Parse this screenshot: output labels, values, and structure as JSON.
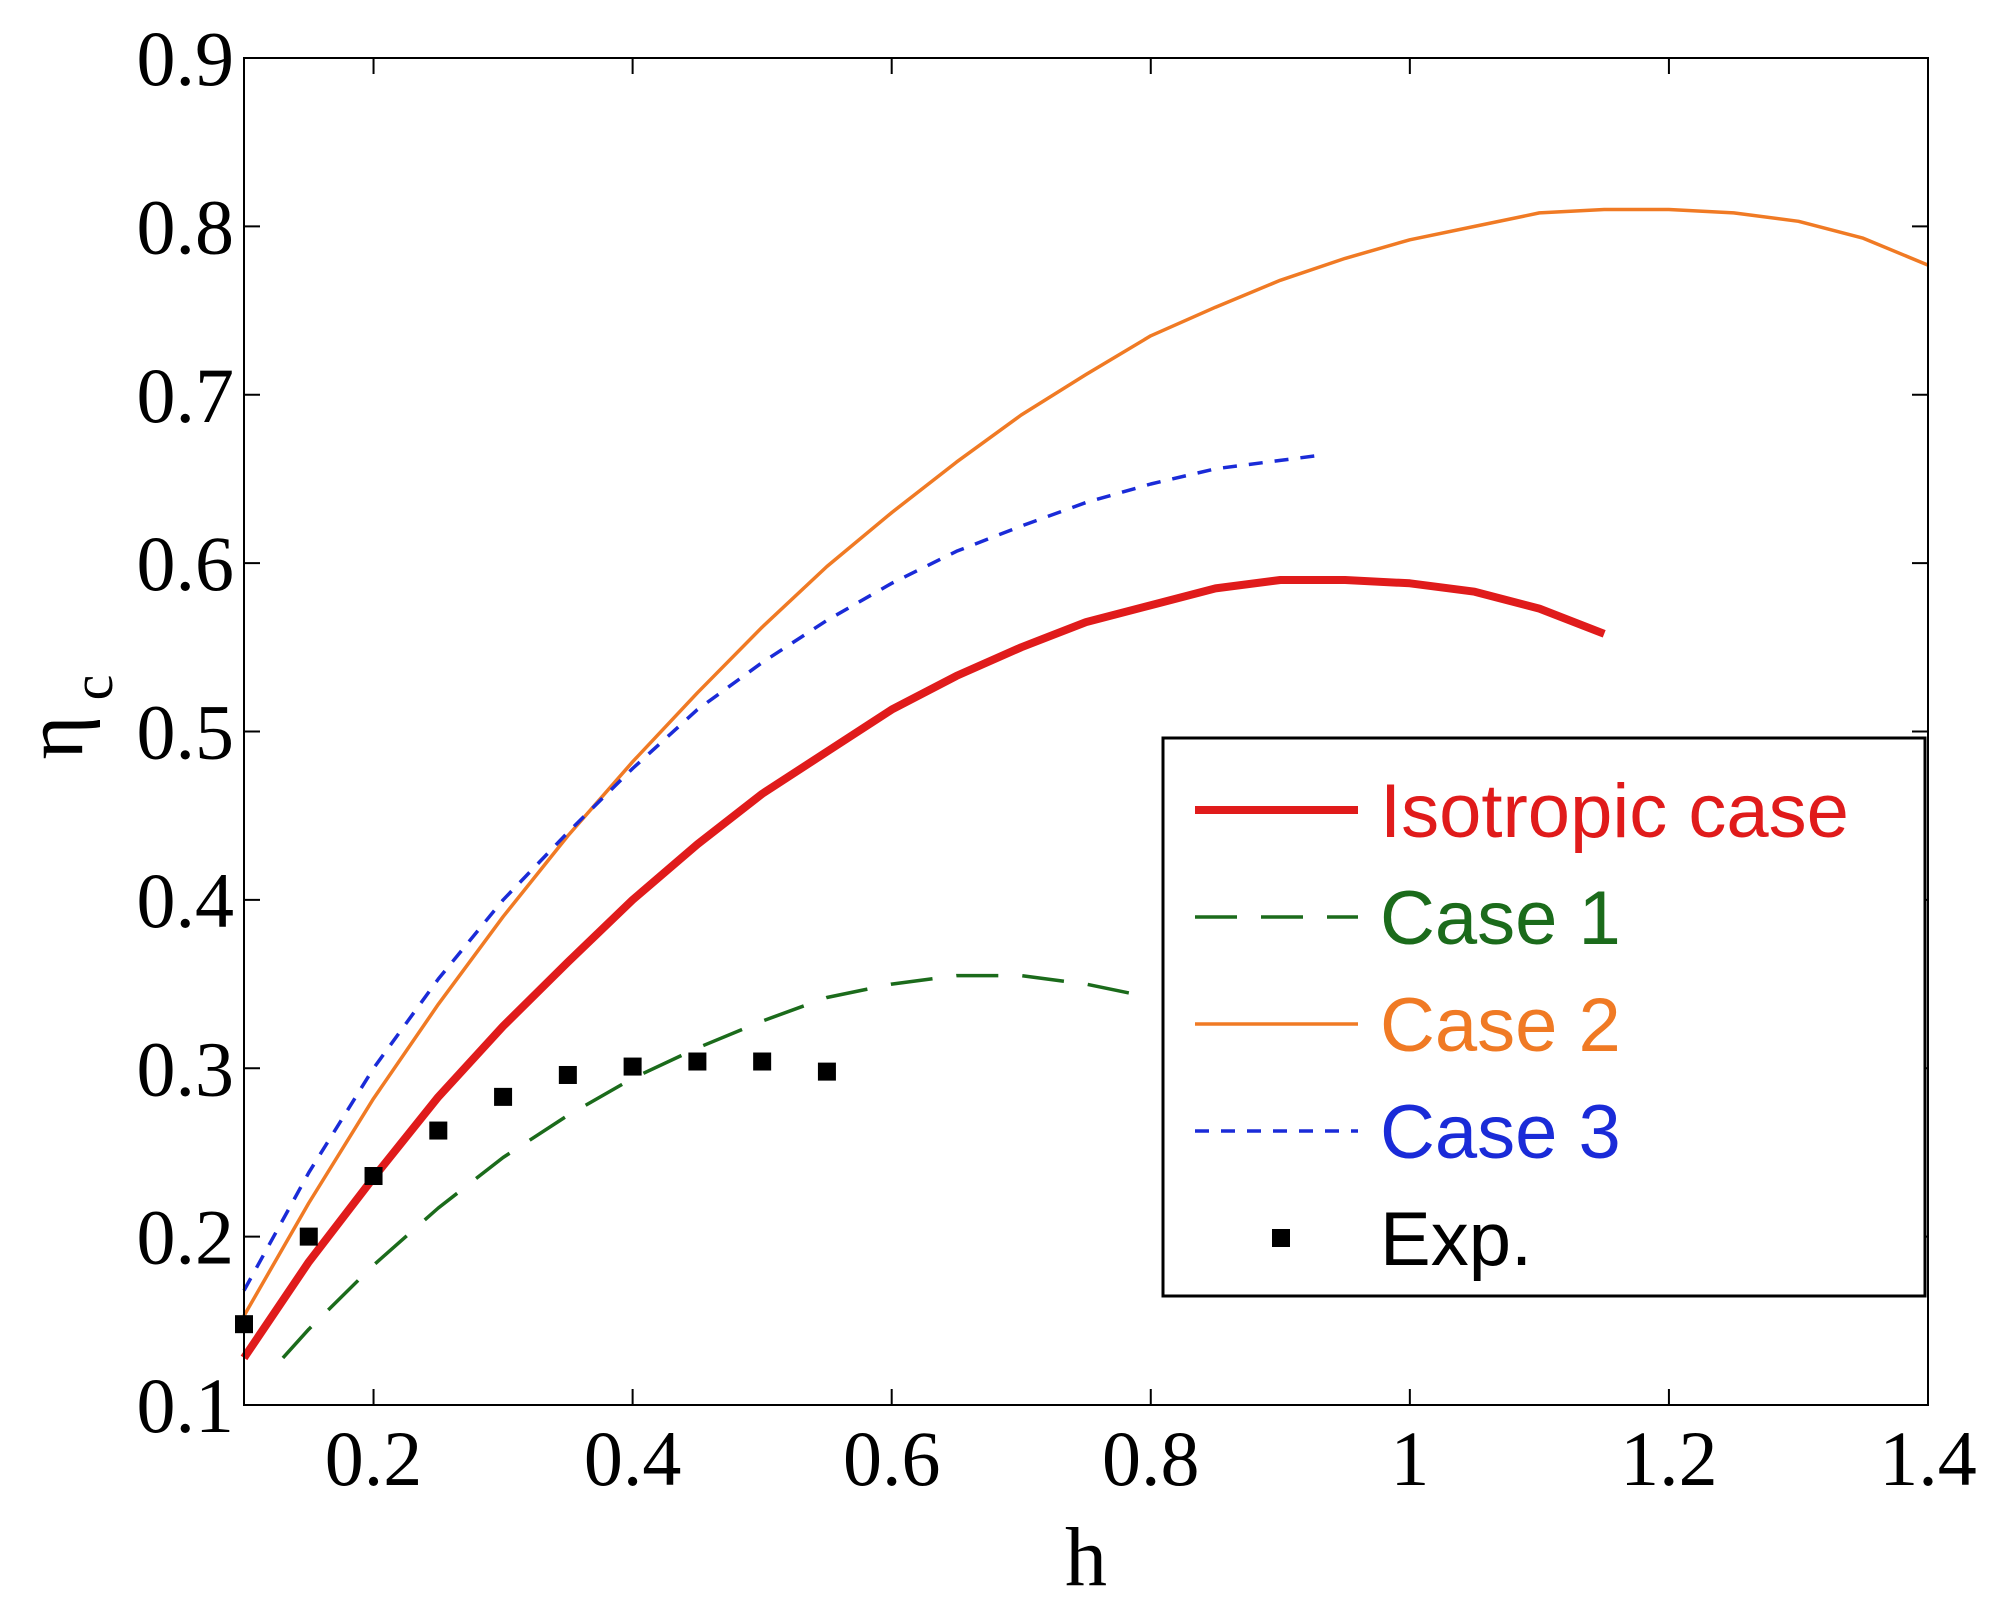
{
  "chart_data": {
    "type": "line",
    "title": "",
    "xlabel": "h",
    "ylabel": "η",
    "ylabel_subscript": "c",
    "xlim": [
      0.1,
      1.4
    ],
    "ylim": [
      0.1,
      0.9
    ],
    "xticks": [
      0.2,
      0.4,
      0.6,
      0.8,
      1.0,
      1.2,
      1.4
    ],
    "xtick_labels": [
      "0.2",
      "0.4",
      "0.6",
      "0.8",
      "1",
      "1.2",
      "1.4"
    ],
    "yticks": [
      0.1,
      0.2,
      0.3,
      0.4,
      0.5,
      0.6,
      0.7,
      0.8,
      0.9
    ],
    "ytick_labels": [
      "0.1",
      "0.2",
      "0.3",
      "0.4",
      "0.5",
      "0.6",
      "0.7",
      "0.8",
      "0.9"
    ],
    "grid": false,
    "legend_position": "right",
    "series": [
      {
        "name": "Isotropic case",
        "style": "solid-thick",
        "color": "#e01b1b",
        "x": [
          0.1,
          0.15,
          0.2,
          0.25,
          0.3,
          0.35,
          0.4,
          0.45,
          0.5,
          0.55,
          0.6,
          0.65,
          0.7,
          0.75,
          0.8,
          0.85,
          0.9,
          0.95,
          1.0,
          1.05,
          1.1,
          1.15
        ],
        "y": [
          0.128,
          0.185,
          0.235,
          0.283,
          0.325,
          0.363,
          0.4,
          0.433,
          0.463,
          0.488,
          0.513,
          0.533,
          0.55,
          0.565,
          0.575,
          0.585,
          0.59,
          0.59,
          0.588,
          0.583,
          0.573,
          0.558
        ]
      },
      {
        "name": "Case 1",
        "style": "long-dash",
        "color": "#1b6b1b",
        "x": [
          0.13,
          0.15,
          0.2,
          0.25,
          0.3,
          0.35,
          0.4,
          0.45,
          0.5,
          0.55,
          0.6,
          0.65,
          0.7,
          0.75,
          0.8
        ],
        "y": [
          0.128,
          0.145,
          0.183,
          0.217,
          0.247,
          0.272,
          0.294,
          0.312,
          0.328,
          0.342,
          0.35,
          0.355,
          0.355,
          0.35,
          0.342
        ]
      },
      {
        "name": "Case 2",
        "style": "solid-thin",
        "color": "#f07a24",
        "x": [
          0.1,
          0.15,
          0.2,
          0.25,
          0.3,
          0.35,
          0.4,
          0.45,
          0.5,
          0.55,
          0.6,
          0.65,
          0.7,
          0.75,
          0.8,
          0.85,
          0.9,
          0.95,
          1.0,
          1.05,
          1.1,
          1.15,
          1.2,
          1.25,
          1.3,
          1.35,
          1.4
        ],
        "y": [
          0.153,
          0.22,
          0.282,
          0.338,
          0.39,
          0.438,
          0.482,
          0.523,
          0.562,
          0.598,
          0.63,
          0.66,
          0.688,
          0.712,
          0.735,
          0.752,
          0.768,
          0.781,
          0.792,
          0.8,
          0.808,
          0.81,
          0.81,
          0.808,
          0.803,
          0.793,
          0.777
        ]
      },
      {
        "name": "Case 3",
        "style": "short-dash",
        "color": "#1a2bd8",
        "x": [
          0.1,
          0.15,
          0.2,
          0.25,
          0.3,
          0.35,
          0.4,
          0.45,
          0.5,
          0.55,
          0.6,
          0.65,
          0.7,
          0.75,
          0.8,
          0.85,
          0.9,
          0.93
        ],
        "y": [
          0.168,
          0.238,
          0.3,
          0.353,
          0.4,
          0.44,
          0.478,
          0.513,
          0.541,
          0.566,
          0.588,
          0.607,
          0.622,
          0.636,
          0.647,
          0.656,
          0.661,
          0.664
        ]
      },
      {
        "name": "Exp.",
        "style": "marker-square",
        "color": "#000000",
        "x": [
          0.1,
          0.15,
          0.2,
          0.25,
          0.3,
          0.35,
          0.4,
          0.45,
          0.5,
          0.55
        ],
        "y": [
          0.148,
          0.2,
          0.236,
          0.263,
          0.283,
          0.296,
          0.301,
          0.304,
          0.304,
          0.298
        ]
      }
    ]
  }
}
